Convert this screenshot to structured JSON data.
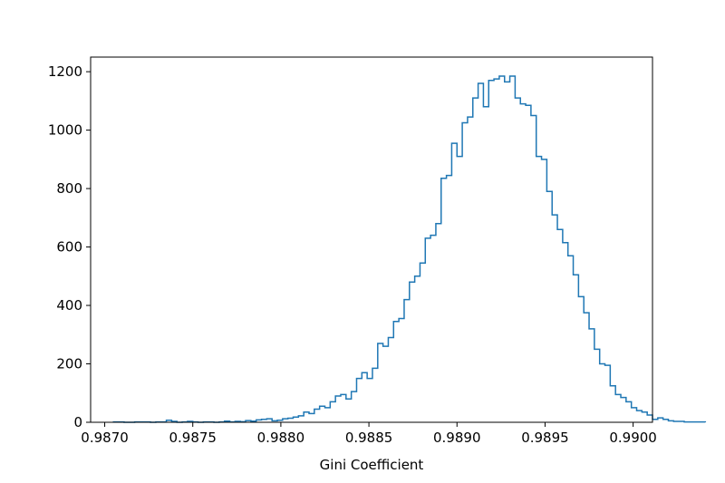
{
  "chart_data": {
    "type": "histogram",
    "title": "",
    "xlabel": "Gini Coefficient",
    "ylabel": "",
    "xlim": [
      0.98692,
      0.99011
    ],
    "ylim": [
      0,
      1250
    ],
    "grid": false,
    "line_color": "#1f77b4",
    "xticks": [
      {
        "value": 0.987,
        "label": "0.9870"
      },
      {
        "value": 0.9875,
        "label": "0.9875"
      },
      {
        "value": 0.988,
        "label": "0.9880"
      },
      {
        "value": 0.9885,
        "label": "0.9885"
      },
      {
        "value": 0.989,
        "label": "0.9890"
      },
      {
        "value": 0.9895,
        "label": "0.9895"
      },
      {
        "value": 0.99,
        "label": "0.9900"
      }
    ],
    "yticks": [
      {
        "value": 0,
        "label": "0"
      },
      {
        "value": 200,
        "label": "200"
      },
      {
        "value": 400,
        "label": "400"
      },
      {
        "value": 600,
        "label": "600"
      },
      {
        "value": 800,
        "label": "800"
      },
      {
        "value": 1000,
        "label": "1000"
      },
      {
        "value": 1200,
        "label": "1200"
      }
    ],
    "bin_start": 0.98705,
    "bin_width": 3e-05,
    "counts": [
      1,
      1,
      0,
      0,
      1,
      1,
      1,
      0,
      1,
      1,
      7,
      3,
      0,
      1,
      3,
      1,
      0,
      1,
      1,
      0,
      1,
      4,
      1,
      3,
      2,
      6,
      4,
      8,
      10,
      12,
      5,
      7,
      12,
      14,
      18,
      22,
      35,
      30,
      45,
      55,
      50,
      70,
      90,
      95,
      80,
      105,
      150,
      170,
      150,
      185,
      270,
      260,
      290,
      345,
      355,
      420,
      480,
      500,
      545,
      630,
      640,
      680,
      835,
      845,
      955,
      910,
      1025,
      1045,
      1110,
      1160,
      1080,
      1170,
      1175,
      1185,
      1165,
      1185,
      1110,
      1090,
      1085,
      1050,
      910,
      900,
      790,
      710,
      660,
      615,
      570,
      505,
      430,
      375,
      320,
      250,
      200,
      195,
      125,
      95,
      85,
      70,
      50,
      40,
      35,
      25,
      10,
      15,
      10,
      5,
      3,
      3,
      1,
      1,
      1,
      1
    ]
  }
}
